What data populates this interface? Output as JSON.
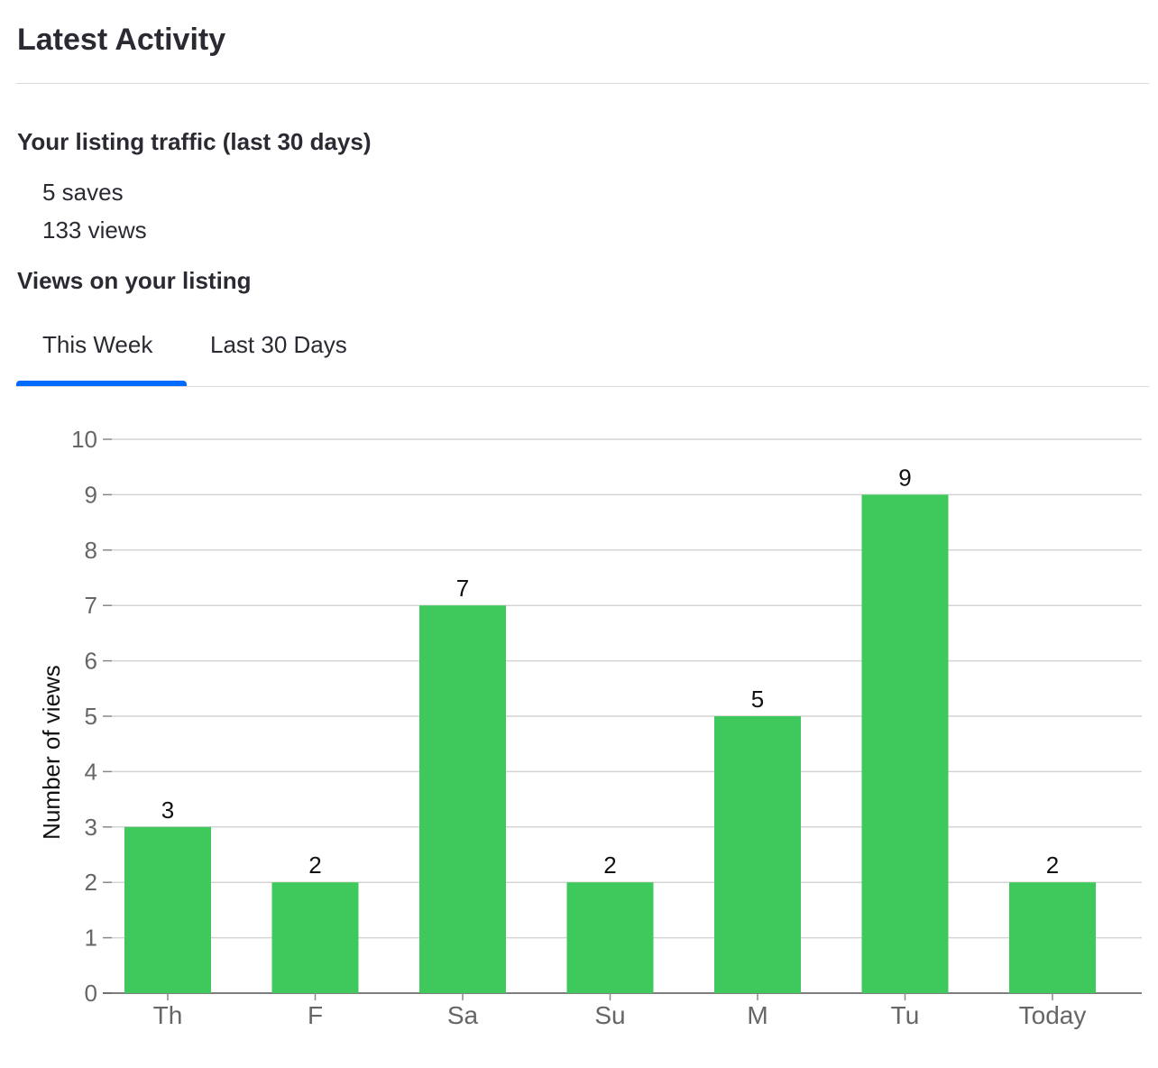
{
  "page": {
    "title": "Latest Activity"
  },
  "traffic": {
    "heading": "Your listing traffic (last 30 days)",
    "saves": "5 saves",
    "views": "133 views"
  },
  "views_section": {
    "heading": "Views on your listing",
    "tabs": [
      {
        "label": "This Week",
        "active": true
      },
      {
        "label": "Last 30 Days",
        "active": false
      }
    ]
  },
  "colors": {
    "bar": "#3fc95c",
    "accent": "#006aff",
    "grid": "#d4d4d4",
    "axis_text": "#666666",
    "text": "#2a2a33"
  },
  "chart_data": {
    "type": "bar",
    "categories": [
      "Th",
      "F",
      "Sa",
      "Su",
      "M",
      "Tu",
      "Today"
    ],
    "values": [
      3,
      2,
      7,
      2,
      5,
      9,
      2
    ],
    "data_labels": [
      "3",
      "2",
      "7",
      "2",
      "5",
      "9",
      "2"
    ],
    "ylabel": "Number of views",
    "xlabel": "",
    "ylim": [
      0,
      10
    ],
    "yticks": [
      0,
      1,
      2,
      3,
      4,
      5,
      6,
      7,
      8,
      9,
      10
    ],
    "grid": true
  }
}
